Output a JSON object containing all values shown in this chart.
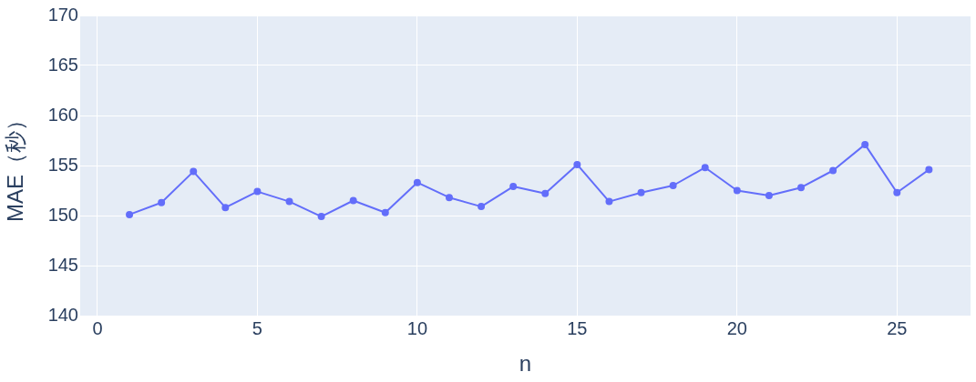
{
  "chart_data": {
    "type": "line",
    "xlabel": "n",
    "ylabel": "MAE（秒）",
    "x": [
      1,
      2,
      3,
      4,
      5,
      6,
      7,
      8,
      9,
      10,
      11,
      12,
      13,
      14,
      15,
      16,
      17,
      18,
      19,
      20,
      21,
      22,
      23,
      24,
      25,
      26
    ],
    "series": [
      {
        "color": "#636efa",
        "values": [
          150.1,
          151.3,
          154.4,
          150.8,
          152.4,
          151.4,
          149.9,
          151.5,
          150.3,
          153.3,
          151.8,
          150.9,
          152.9,
          152.2,
          155.1,
          151.4,
          152.3,
          153.0,
          154.8,
          152.5,
          152.0,
          152.8,
          154.5,
          157.1,
          152.3,
          154.6
        ]
      }
    ],
    "xlim": [
      -0.54,
      27.3
    ],
    "xticks": [
      0,
      5,
      10,
      15,
      20,
      25
    ],
    "ylim": [
      140,
      170
    ],
    "yticks": [
      140,
      145,
      150,
      155,
      160,
      165,
      170
    ],
    "grid": true,
    "legend": false,
    "marker": "circle",
    "line_style": "solid"
  }
}
